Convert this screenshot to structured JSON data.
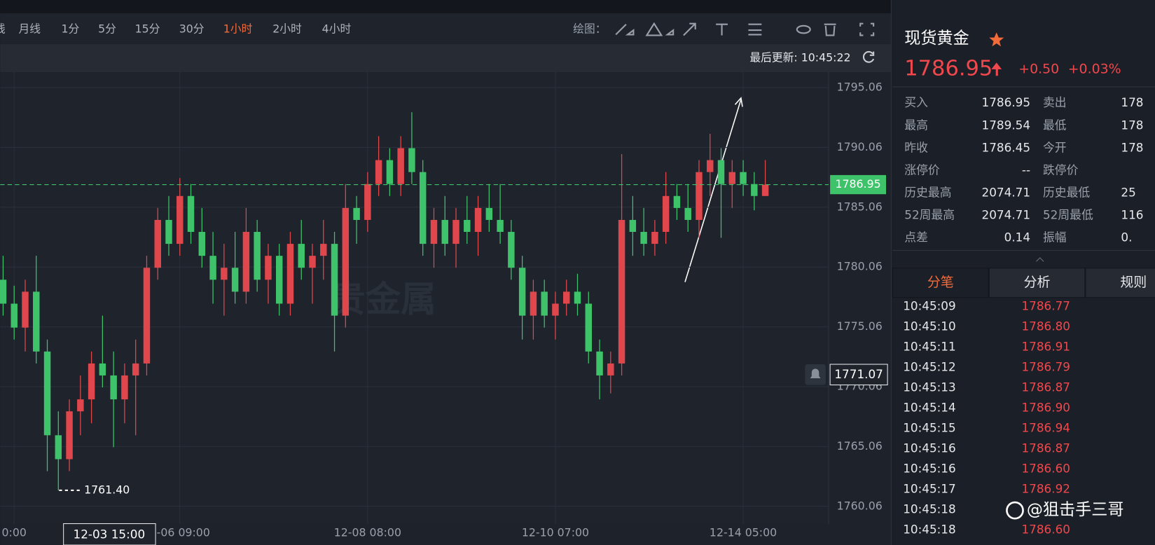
{
  "toolbar": {
    "periods": [
      "线",
      "月线",
      "1分",
      "5分",
      "15分",
      "30分",
      "1小时",
      "2小时",
      "4小时"
    ],
    "draw_label": "绘图：",
    "last_update": "最后更新: 10:45:22"
  },
  "chart_data": {
    "type": "candlestick",
    "categories": [
      null,
      "0:00",
      null,
      null,
      null,
      null,
      null,
      null,
      null,
      null,
      null,
      null,
      null,
      null,
      null,
      null,
      "2-06 09:00",
      null,
      null,
      null,
      null,
      null,
      null,
      null,
      null,
      null,
      null,
      null,
      null,
      null,
      null,
      null,
      null,
      "12-08 08:00",
      null,
      null,
      null,
      null,
      null,
      null,
      null,
      null,
      null,
      null,
      null,
      null,
      null,
      null,
      null,
      null,
      "12-10 07:00",
      null,
      null,
      null,
      null,
      null,
      null,
      null,
      null,
      null,
      null,
      null,
      null,
      null,
      null,
      null,
      null,
      "12-14 05:00",
      null,
      null
    ],
    "open": [
      1779,
      1777,
      1775,
      1778,
      1773,
      1766,
      1764,
      1768,
      1769,
      1772,
      1771,
      1769,
      1771,
      1772,
      1780,
      1784,
      1782,
      1786,
      1783,
      1781,
      1779,
      1780,
      1778,
      1783,
      1779,
      1781,
      1777,
      1782,
      1780,
      1781,
      1782,
      1776,
      1785,
      1784,
      1787,
      1789,
      1787,
      1790,
      1788,
      1782,
      1784,
      1782,
      1784,
      1783,
      1785,
      1784,
      1783,
      1780,
      1776,
      1778,
      1776,
      1777,
      1778,
      1777,
      1773,
      1771,
      1772,
      1784,
      1783,
      1782,
      1783,
      1786,
      1785,
      1784,
      1788,
      1789,
      1787,
      1788,
      1787,
      1786
    ],
    "high": [
      1781,
      1778.5,
      1779,
      1781,
      1774,
      1768,
      1769,
      1771,
      1773,
      1776,
      1773,
      1772,
      1774,
      1781,
      1785,
      1786,
      1787.5,
      1787,
      1785,
      1783,
      1782,
      1783,
      1785,
      1784,
      1782,
      1782,
      1783,
      1784,
      1782,
      1784,
      1783,
      1787,
      1786,
      1788,
      1791,
      1790,
      1791,
      1793,
      1789,
      1785,
      1786,
      1785,
      1786,
      1786,
      1787,
      1787,
      1784,
      1781,
      1779,
      1779,
      1778,
      1779,
      1779.5,
      1778,
      1774,
      1773,
      1789.5,
      1786,
      1785,
      1784,
      1788,
      1787,
      1787,
      1789,
      1791.2,
      1790,
      1789,
      1789,
      1788,
      1789
    ],
    "low": [
      1776,
      1774,
      1773,
      1772,
      1763,
      1761.4,
      1763,
      1766,
      1767,
      1770,
      1765,
      1767,
      1766,
      1771,
      1779,
      1781,
      1781,
      1782,
      1780,
      1777,
      1776,
      1777,
      1777,
      1778,
      1777,
      1776,
      1776,
      1779,
      1777,
      1779,
      1773,
      1775,
      1782,
      1783,
      1786,
      1786,
      1786,
      1787,
      1781,
      1780,
      1781,
      1780,
      1782,
      1781,
      1783,
      1782,
      1779,
      1774,
      1774,
      1775,
      1774,
      1776,
      1776,
      1772,
      1769,
      1769.5,
      1771,
      1781,
      1781,
      1781,
      1782,
      1784,
      1783,
      1782.5,
      1786,
      1782.5,
      1785,
      1786,
      1784.8,
      1786
    ],
    "close": [
      1777,
      1775,
      1778,
      1773,
      1766,
      1764,
      1768,
      1769,
      1772,
      1771,
      1769,
      1771,
      1772,
      1780,
      1784,
      1782,
      1786,
      1783,
      1781,
      1779,
      1780,
      1778,
      1783,
      1779,
      1781,
      1777,
      1782,
      1780,
      1781,
      1782,
      1776,
      1785,
      1784,
      1787,
      1789,
      1787,
      1790,
      1788,
      1782,
      1784,
      1782,
      1784,
      1783,
      1785,
      1784,
      1783,
      1780,
      1776,
      1778,
      1776,
      1777,
      1778,
      1777,
      1773,
      1771,
      1772,
      1784,
      1783,
      1782,
      1783,
      1786,
      1785,
      1784,
      1788,
      1789,
      1787,
      1788,
      1787,
      1786,
      1786.95
    ],
    "up_color": "#e0474c",
    "down_color": "#3ec26a",
    "ylim": [
      1758.55,
      1796.35
    ],
    "yticks": [
      1760.06,
      1765.06,
      1770.06,
      1775.06,
      1780.06,
      1785.06,
      1790.06,
      1795.06
    ],
    "grid": true,
    "last_price": 1786.95,
    "low_label": {
      "value": 1761.4,
      "label": "1761.40"
    },
    "crosshair": {
      "time": "12-03 15:00",
      "price": 1771.07
    },
    "watermark": "贵金属"
  },
  "panel": {
    "title": "现货黄金",
    "price": "1786.95",
    "change": "+0.50",
    "change_pct": "+0.03%",
    "stats": [
      [
        "买入",
        "1786.95",
        "卖出",
        "178"
      ],
      [
        "最高",
        "1789.54",
        "最低",
        "178"
      ],
      [
        "昨收",
        "1786.45",
        "今开",
        "178"
      ],
      [
        "涨停价",
        "--",
        "跌停价"
      ],
      [
        "历史最高",
        "2074.71",
        "历史最低",
        "25"
      ],
      [
        "52周最高",
        "2074.71",
        "52周最低",
        "116"
      ],
      [
        "点差",
        "0.14",
        "振幅",
        "0."
      ]
    ],
    "tabs": [
      "分笔",
      "分析",
      "规则"
    ],
    "ticks": [
      [
        "10:45:09",
        "1786.77"
      ],
      [
        "10:45:10",
        "1786.80"
      ],
      [
        "10:45:11",
        "1786.91"
      ],
      [
        "10:45:12",
        "1786.79"
      ],
      [
        "10:45:13",
        "1786.87"
      ],
      [
        "10:45:14",
        "1786.90"
      ],
      [
        "10:45:15",
        "1786.94"
      ],
      [
        "10:45:16",
        "1786.87"
      ],
      [
        "10:45:16",
        "1786.60"
      ],
      [
        "10:45:17",
        "1786.92"
      ],
      [
        "10:45:18"
      ],
      [
        "10:45:18",
        "1786.60"
      ]
    ],
    "watermark": "@狙击手三哥"
  }
}
